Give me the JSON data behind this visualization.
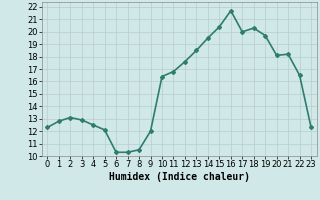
{
  "x": [
    0,
    1,
    2,
    3,
    4,
    5,
    6,
    7,
    8,
    9,
    10,
    11,
    12,
    13,
    14,
    15,
    16,
    17,
    18,
    19,
    20,
    21,
    22,
    23
  ],
  "y": [
    12.3,
    12.8,
    13.1,
    12.9,
    12.5,
    12.1,
    10.3,
    10.3,
    10.5,
    12.0,
    16.4,
    16.8,
    17.6,
    18.5,
    19.5,
    20.4,
    21.7,
    20.0,
    20.3,
    19.7,
    18.1,
    18.2,
    16.5,
    12.3
  ],
  "line_color": "#2e7d6e",
  "marker": "D",
  "marker_size": 2,
  "bg_color": "#d0e8e8",
  "grid_color": "#b8cccc",
  "xlabel": "Humidex (Indice chaleur)",
  "xlim": [
    -0.5,
    23.5
  ],
  "ylim": [
    10,
    22.4
  ],
  "yticks": [
    10,
    11,
    12,
    13,
    14,
    15,
    16,
    17,
    18,
    19,
    20,
    21,
    22
  ],
  "xticks": [
    0,
    1,
    2,
    3,
    4,
    5,
    6,
    7,
    8,
    9,
    10,
    11,
    12,
    13,
    14,
    15,
    16,
    17,
    18,
    19,
    20,
    21,
    22,
    23
  ],
  "xlabel_fontsize": 7,
  "tick_fontsize": 6,
  "line_width": 1.2
}
